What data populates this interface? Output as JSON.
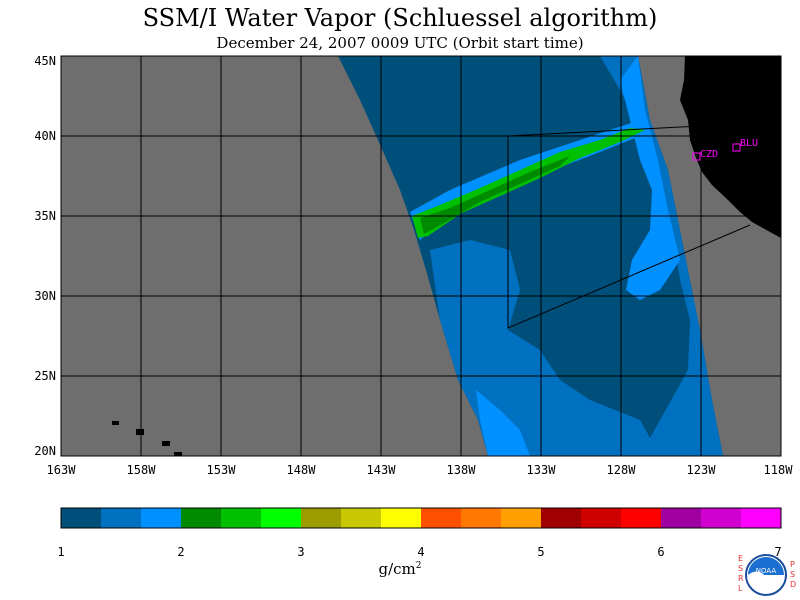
{
  "title": "SSM/I Water Vapor (Schluessel algorithm)",
  "subtitle": "December 24, 2007  0009 UTC  (Orbit start time)",
  "lat_labels": [
    "45N",
    "40N",
    "35N",
    "30N",
    "25N",
    "20N"
  ],
  "lon_labels": [
    "163W",
    "158W",
    "153W",
    "148W",
    "143W",
    "138W",
    "133W",
    "128W",
    "123W",
    "118W"
  ],
  "colorbar": {
    "colors": [
      "#004f7a",
      "#0070c0",
      "#0090ff",
      "#008a00",
      "#00c000",
      "#00ff00",
      "#9c9c00",
      "#c8c800",
      "#ffff00",
      "#ff5000",
      "#ff7800",
      "#ffa000",
      "#a00000",
      "#d00000",
      "#ff0000",
      "#a000a0",
      "#d000d0",
      "#ff00ff"
    ],
    "tick_labels": [
      "1",
      "2",
      "3",
      "4",
      "5",
      "6",
      "7"
    ],
    "units": "g/cm",
    "units_exp": "2"
  },
  "stations": [
    {
      "label": "CZD"
    },
    {
      "label": "BLU"
    }
  ],
  "logo": {
    "left_letters": [
      "E",
      "S",
      "R",
      "L"
    ],
    "right_letters": [
      "P",
      "S",
      "D"
    ],
    "center": "NOAA"
  },
  "colors": {
    "no_data": "#6e6e6e",
    "land": "#000000",
    "station": "#ff00ff"
  }
}
